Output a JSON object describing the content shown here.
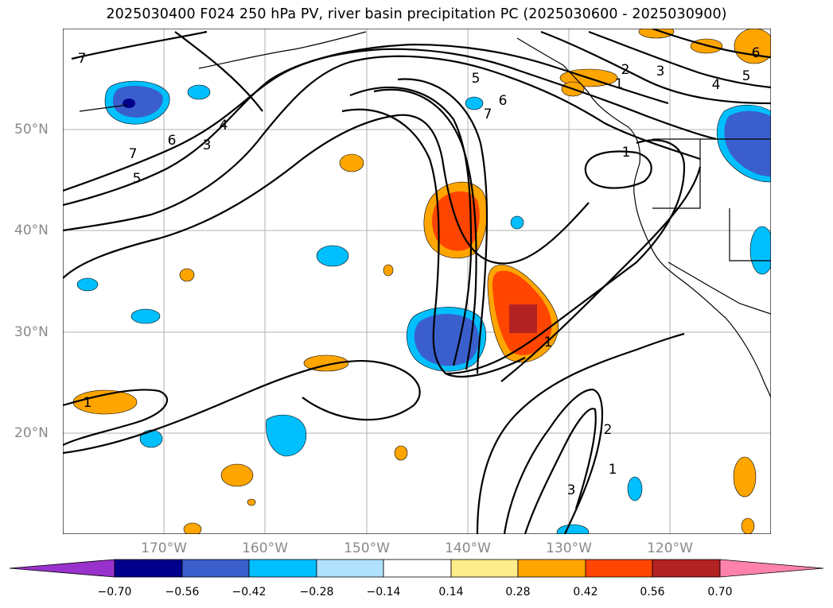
{
  "title": "2025030400 F024 250 hPa PV, river basin precipitation PC (2025030600 - 2025030900)",
  "axes": {
    "lon_labels": [
      "170°W",
      "160°W",
      "150°W",
      "140°W",
      "130°W",
      "120°W"
    ],
    "lat_labels": [
      "50°N",
      "40°N",
      "30°N",
      "20°N"
    ]
  },
  "contour_labels": [
    "7",
    "7",
    "6",
    "5",
    "4",
    "3",
    "5",
    "6",
    "7",
    "2",
    "1",
    "3",
    "4",
    "5",
    "6",
    "1",
    "1",
    "2",
    "1",
    "3",
    "1"
  ],
  "colorbar": {
    "ticks": [
      "−0.70",
      "−0.56",
      "−0.42",
      "−0.28",
      "−0.14",
      "0.14",
      "0.28",
      "0.42",
      "0.56",
      "0.70"
    ],
    "colors": [
      "#9932cc",
      "#00008b",
      "#3a5fcd",
      "#00bfff",
      "#b0e2ff",
      "#ffffff",
      "#ffec8b",
      "#ffa500",
      "#ff4500",
      "#b22222",
      "#ff82ab"
    ]
  },
  "colors": {
    "pos_light": "#ffec8b",
    "pos_mid": "#ffa500",
    "pos_strong": "#ff4500",
    "pos_max": "#b22222",
    "neg_light": "#b0e2ff",
    "neg_mid": "#00bfff",
    "neg_strong": "#3a5fcd",
    "neg_max": "#00008b"
  }
}
